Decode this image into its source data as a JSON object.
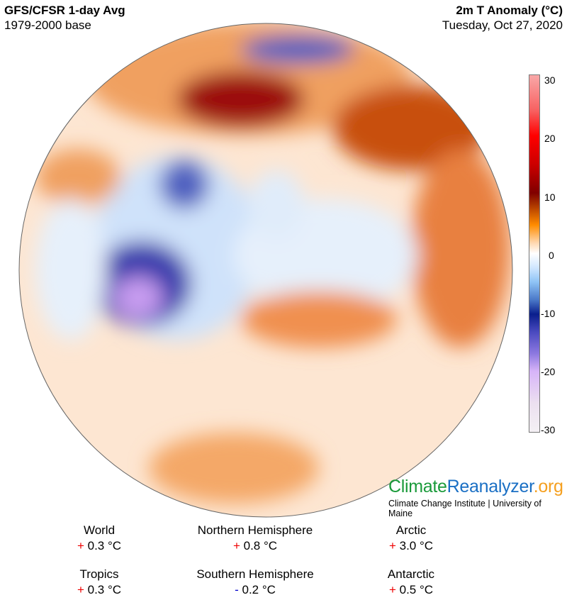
{
  "header": {
    "left_title": "GFS/CFSR 1-day Avg",
    "left_subtitle": "1979-2000 base",
    "right_title": "2m T Anomaly (°C)",
    "right_subtitle": "Tuesday, Oct 27, 2020"
  },
  "colorbar": {
    "ticks": [
      "30",
      "20",
      "10",
      "0",
      "-10",
      "-20",
      "-30"
    ],
    "range": [
      -30,
      30
    ],
    "unit": "°C"
  },
  "logo": {
    "part1": "Climate",
    "part2": "Reanalyzer",
    "part3": ".org",
    "colors": {
      "part1": "#1a9a3a",
      "part2": "#1a6fc4",
      "part3": "#f5a020"
    },
    "subtitle": "Climate Change Institute | University of Maine"
  },
  "stats": [
    {
      "label": "World",
      "sign": "+",
      "value": "0.3 °C"
    },
    {
      "label": "Northern Hemisphere",
      "sign": "+",
      "value": "0.8 °C"
    },
    {
      "label": "Arctic",
      "sign": "+",
      "value": "3.0 °C"
    },
    {
      "label": "Tropics",
      "sign": "+",
      "value": "0.3 °C"
    },
    {
      "label": "Southern Hemisphere",
      "sign": "-",
      "value": "0.2 °C"
    },
    {
      "label": "Antarctic",
      "sign": "+",
      "value": "0.5 °C"
    }
  ]
}
